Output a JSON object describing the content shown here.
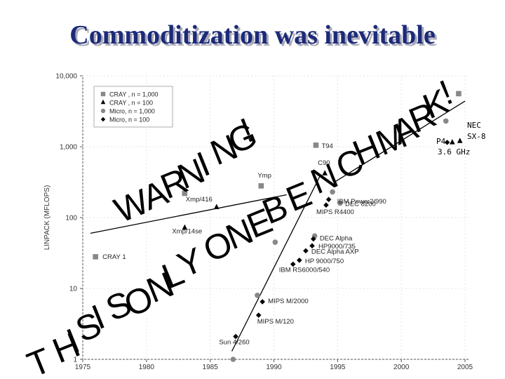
{
  "title": "Commoditization was inevitable",
  "colors": {
    "title": "#1c2a78",
    "marker": "#888888",
    "ink": "#000000"
  },
  "banners": {
    "benchmark": [
      "B",
      "E",
      "N",
      "C",
      "H",
      "M",
      "A",
      "R",
      "K",
      "!"
    ],
    "warning": [
      "W",
      "A",
      "R",
      "N",
      "I",
      "N",
      "G",
      "!"
    ],
    "onlyone": [
      "O",
      "N",
      "L",
      "Y",
      " ",
      "O",
      "N",
      "E"
    ],
    "thisis": [
      "T",
      "H",
      "I",
      "S",
      " ",
      "I",
      "S"
    ]
  },
  "chart_data": {
    "type": "scatter",
    "ylabel": "LINPACK (MFLOPS)",
    "xlim": [
      1975,
      2005
    ],
    "ylim": [
      1,
      10000
    ],
    "yscale": "log",
    "x_ticks": [
      "1975",
      "1980",
      "1985",
      "1990",
      "1995",
      "2000",
      "2005"
    ],
    "y_ticks": [
      "1",
      "10",
      "100",
      "1,000",
      "10,000"
    ],
    "legend": [
      {
        "name": "CRAY , n = 1,000",
        "marker": "square"
      },
      {
        "name": "CRAY , n = 100",
        "marker": "triangle"
      },
      {
        "name": "Micro, n = 1,000",
        "marker": "circle"
      },
      {
        "name": "Micro, n = 100",
        "marker": "diamond"
      }
    ],
    "legend_position": "top-left",
    "series": [
      {
        "name": "CRAY , n = 1,000",
        "marker": "square",
        "points": [
          {
            "x": 1976,
            "y": 28,
            "label": "CRAY 1"
          },
          {
            "x": 1983,
            "y": 220,
            "label": ""
          },
          {
            "x": 1989,
            "y": 280,
            "label": "Ymp"
          },
          {
            "x": 1993.3,
            "y": 1050,
            "label": "T94"
          },
          {
            "x": 2004.5,
            "y": 5600,
            "label": ""
          }
        ]
      },
      {
        "name": "CRAY , n = 100",
        "marker": "triangle",
        "points": [
          {
            "x": 1983,
            "y": 72,
            "label": "Xmp/14se"
          },
          {
            "x": 1985.5,
            "y": 140,
            "label": "Xmp/416"
          },
          {
            "x": 1994,
            "y": 420,
            "label": "C90"
          },
          {
            "x": 2004,
            "y": 1150,
            "label": ""
          },
          {
            "x": 2004.6,
            "y": 1200,
            "label": "NEC SX-8"
          }
        ]
      },
      {
        "name": "Micro, n = 1,000",
        "marker": "circle",
        "points": [
          {
            "x": 1986.8,
            "y": 1,
            "label": ""
          },
          {
            "x": 1988.7,
            "y": 8,
            "label": ""
          },
          {
            "x": 1990.1,
            "y": 45,
            "label": ""
          },
          {
            "x": 1993.2,
            "y": 55,
            "label": ""
          },
          {
            "x": 1994.6,
            "y": 230,
            "label": ""
          },
          {
            "x": 1995.2,
            "y": 160,
            "label": "DEC 8200"
          },
          {
            "x": 2003.5,
            "y": 2300,
            "label": ""
          }
        ]
      },
      {
        "name": "Micro, n = 100",
        "marker": "diamond",
        "points": [
          {
            "x": 1987,
            "y": 2.1,
            "label": "Sun 4/260"
          },
          {
            "x": 1988.8,
            "y": 4.2,
            "label": "MIPS M/120"
          },
          {
            "x": 1989.1,
            "y": 6.5,
            "label": "MIPS M/2000"
          },
          {
            "x": 1991.5,
            "y": 22,
            "label": "IBM RS6000/540"
          },
          {
            "x": 1992,
            "y": 25,
            "label": "HP 9000/750"
          },
          {
            "x": 1992.5,
            "y": 34,
            "label": "DEC Alpha AXP"
          },
          {
            "x": 1993,
            "y": 40,
            "label": "HP9000/735"
          },
          {
            "x": 1993.1,
            "y": 50,
            "label": "DEC Alpha"
          },
          {
            "x": 1994.1,
            "y": 150,
            "label": "MIPS R4400"
          },
          {
            "x": 1994.3,
            "y": 180,
            "label": "IBM Power2/990"
          },
          {
            "x": 2003.6,
            "y": 1150,
            "label": "P4 3.6 GHz"
          }
        ]
      }
    ],
    "trend_lines": [
      {
        "from": [
          1975.6,
          60
        ],
        "to": [
          1991,
          210
        ]
      },
      {
        "from": [
          1986.7,
          1.3
        ],
        "to": [
          1993.6,
          380
        ]
      },
      {
        "from": [
          1994.8,
          320
        ],
        "to": [
          2005,
          4400
        ]
      }
    ]
  }
}
